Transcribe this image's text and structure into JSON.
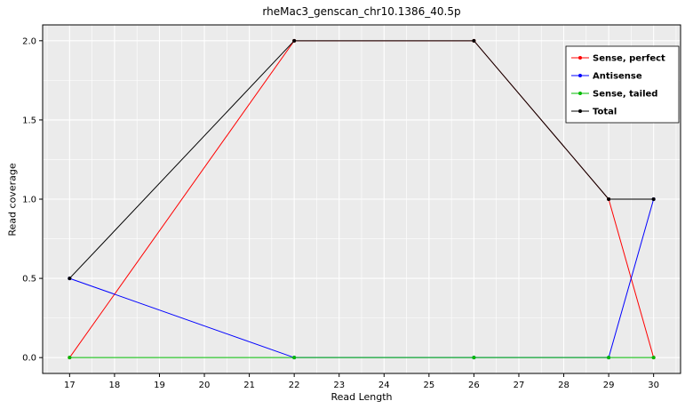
{
  "chart_data": {
    "type": "line",
    "title": "rheMac3_genscan_chr10.1386_40.5p",
    "xlabel": "Read Length",
    "ylabel": "Read coverage",
    "x_ticks": [
      17,
      18,
      19,
      20,
      21,
      22,
      23,
      24,
      25,
      26,
      27,
      28,
      29,
      30
    ],
    "y_ticks": [
      {
        "value": 0.0,
        "label": "0.0"
      },
      {
        "value": 0.5,
        "label": "0.5"
      },
      {
        "value": 1.0,
        "label": "1.0"
      },
      {
        "value": 1.5,
        "label": "1.5"
      },
      {
        "value": 2.0,
        "label": "2.0"
      }
    ],
    "xlim": [
      16.4,
      30.6
    ],
    "ylim": [
      -0.1,
      2.1
    ],
    "x": [
      17,
      22,
      26,
      29,
      30
    ],
    "series": [
      {
        "name": "Sense, perfect",
        "color": "#ff0000",
        "values": [
          0,
          2,
          2,
          1,
          0
        ]
      },
      {
        "name": "Antisense",
        "color": "#0000ff",
        "values": [
          0.5,
          0,
          0,
          0,
          1
        ]
      },
      {
        "name": "Sense, tailed",
        "color": "#00bb00",
        "values": [
          0,
          0,
          0,
          0,
          0
        ]
      },
      {
        "name": "Total",
        "color": "#000000",
        "values": [
          0.5,
          2,
          2,
          1,
          1
        ]
      }
    ],
    "legend_position": "top-right",
    "grid": true,
    "panel_background": "#ebebeb",
    "grid_color": "#ffffff",
    "figure_background": "#ffffff"
  }
}
